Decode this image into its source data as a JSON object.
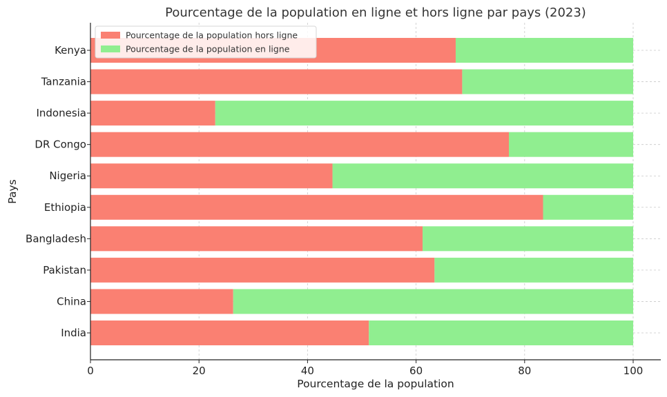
{
  "chart_data": {
    "type": "bar",
    "orientation": "horizontal",
    "stacked": true,
    "title": "Pourcentage de la population en ligne et hors ligne par pays (2023)",
    "xlabel": "Pourcentage de la population",
    "ylabel": "Pays",
    "xlim": [
      0,
      100
    ],
    "xticks": [
      "0",
      "20",
      "40",
      "60",
      "80",
      "100"
    ],
    "grid": true,
    "legend_position": "top-left",
    "categories": [
      "India",
      "China",
      "Pakistan",
      "Bangladesh",
      "Ethiopia",
      "Nigeria",
      "DR Congo",
      "Indonesia",
      "Tanzania",
      "Kenya"
    ],
    "series": [
      {
        "name": "Pourcentage de la population hors ligne",
        "color": "#FA8072",
        "values": [
          51.3,
          26.3,
          63.4,
          61.2,
          83.4,
          44.6,
          77.1,
          23.0,
          68.5,
          67.3
        ]
      },
      {
        "name": "Pourcentage de la population en ligne",
        "color": "#90EE90",
        "values": [
          48.7,
          73.7,
          36.6,
          38.8,
          16.6,
          55.4,
          22.9,
          77.0,
          31.5,
          32.7
        ]
      }
    ]
  }
}
